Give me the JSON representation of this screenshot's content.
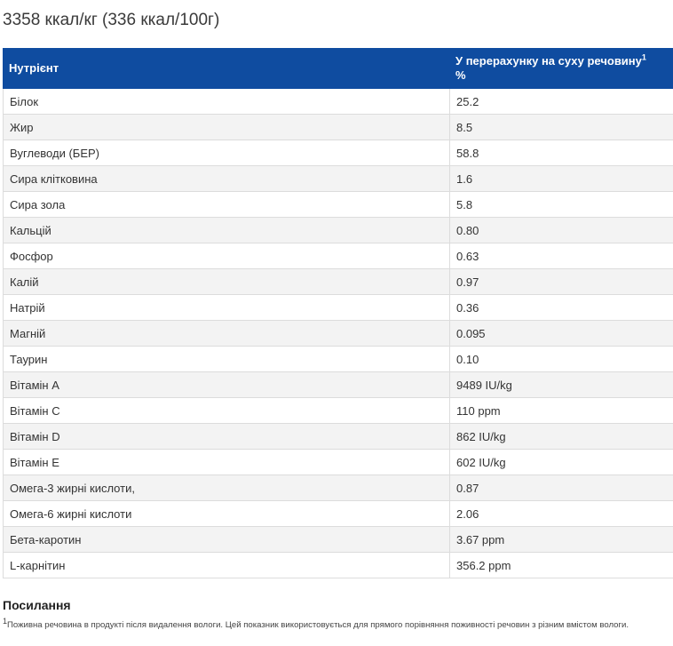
{
  "calorie_title": "3358 ккал/кг (336 ккал/100г)",
  "table": {
    "headers": {
      "nutrient": "Нутрієнт",
      "dry_matter": "У перерахунку на суху речовину",
      "dry_matter_sup": "1",
      "dry_matter_unit": "%"
    },
    "rows": [
      {
        "name": "Білок",
        "value": "25.2"
      },
      {
        "name": "Жир",
        "value": "8.5"
      },
      {
        "name": "Вуглеводи (БЕР)",
        "value": "58.8"
      },
      {
        "name": "Сира клітковина",
        "value": "1.6"
      },
      {
        "name": "Сира зола",
        "value": "5.8"
      },
      {
        "name": "Кальцій",
        "value": "0.80"
      },
      {
        "name": "Фосфор",
        "value": "0.63"
      },
      {
        "name": "Калій",
        "value": "0.97"
      },
      {
        "name": "Натрій",
        "value": "0.36"
      },
      {
        "name": "Магній",
        "value": "0.095"
      },
      {
        "name": "Таурин",
        "value": "0.10"
      },
      {
        "name": "Вітамін А",
        "value": "9489 IU/kg"
      },
      {
        "name": "Вітамін С",
        "value": "110 ppm"
      },
      {
        "name": "Вітамін D",
        "value": "862 IU/kg"
      },
      {
        "name": "Вітамін Е",
        "value": "602 IU/kg"
      },
      {
        "name": "Омега-3 жирні кислоти,",
        "value": "0.87"
      },
      {
        "name": "Омега-6 жирні кислоти",
        "value": "2.06"
      },
      {
        "name": "Бета-каротин",
        "value": "3.67 ppm"
      },
      {
        "name": "L-карнітин",
        "value": "356.2 ppm"
      }
    ]
  },
  "references": {
    "title": "Посилання",
    "footnote_sup": "1",
    "footnote_text": "Поживна речовина в продукті після видалення вологи. Цей показник використовується для прямого порівняння поживності речовин з різним вмістом вологи."
  }
}
